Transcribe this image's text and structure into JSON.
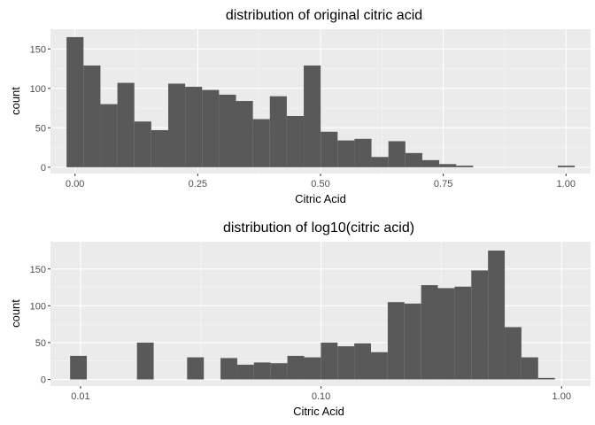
{
  "colors": {
    "panel": "#ebebeb",
    "grid_major": "#ffffff",
    "grid_minor": "#f5f5f5",
    "bar": "#595959",
    "tick": "#333333"
  },
  "chart_data": [
    {
      "type": "bar",
      "title": "distribution of original citric acid",
      "xlabel": "Citric Acid",
      "ylabel": "count",
      "xscale": "linear",
      "xlim": [
        -0.05,
        1.05
      ],
      "ylim": [
        -8,
        175
      ],
      "xticks": [
        0,
        0.25,
        0.5,
        0.75,
        1.0
      ],
      "xtick_labels": [
        "0.00",
        "0.25",
        "0.50",
        "0.75",
        "1.00"
      ],
      "yticks": [
        0,
        50,
        100,
        150
      ],
      "ytick_labels": [
        "0",
        "50",
        "100",
        "150"
      ],
      "bin_start": -0.0172,
      "bin_width": 0.0345,
      "values": [
        165,
        129,
        80,
        107,
        58,
        47,
        106,
        102,
        98,
        92,
        84,
        61,
        90,
        65,
        129,
        45,
        34,
        36,
        13,
        33,
        18,
        9,
        4,
        2,
        0,
        0,
        0,
        0,
        0,
        2
      ]
    },
    {
      "type": "bar",
      "title": "distribution of log10(citric acid)",
      "xlabel": "Citric Acid",
      "ylabel": "count",
      "xscale": "log10",
      "xlim": [
        0.0075,
        1.32
      ],
      "ylim": [
        -9,
        187
      ],
      "xticks": [
        0.01,
        0.1,
        1.0
      ],
      "xtick_labels": [
        "0.01",
        "0.10",
        "1.00"
      ],
      "yticks": [
        0,
        50,
        100,
        150
      ],
      "ytick_labels": [
        "0",
        "50",
        "100",
        "150"
      ],
      "bin_start": 0.00905,
      "bin_width_log10": 0.0695,
      "values": [
        32,
        0,
        0,
        0,
        50,
        0,
        0,
        30,
        0,
        29,
        20,
        23,
        22,
        32,
        30,
        50,
        45,
        49,
        37,
        105,
        103,
        128,
        124,
        126,
        148,
        175,
        71,
        30,
        2
      ]
    }
  ]
}
